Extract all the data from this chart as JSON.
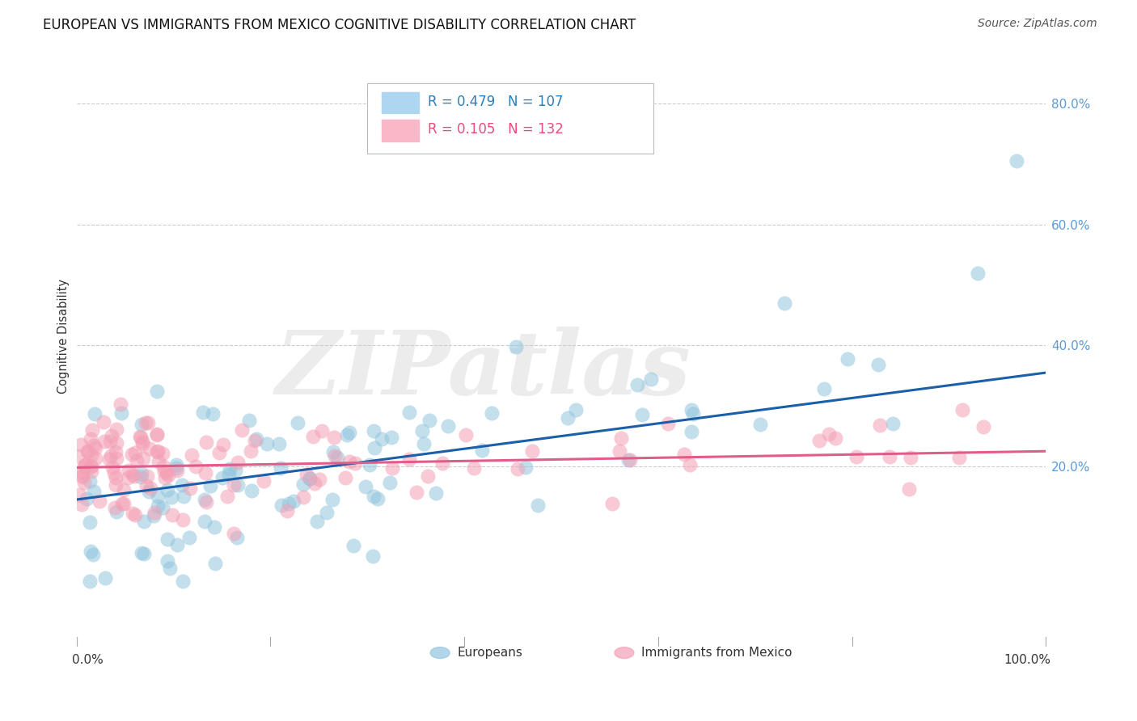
{
  "title": "EUROPEAN VS IMMIGRANTS FROM MEXICO COGNITIVE DISABILITY CORRELATION CHART",
  "source": "Source: ZipAtlas.com",
  "ylabel": "Cognitive Disability",
  "xlim": [
    0.0,
    1.0
  ],
  "ylim": [
    -0.05,
    0.88
  ],
  "ytick_positions": [
    0.2,
    0.4,
    0.6,
    0.8
  ],
  "ytick_labels": [
    "20.0%",
    "40.0%",
    "60.0%",
    "80.0%"
  ],
  "european_color": "#92c5de",
  "european_edge": "#92c5de",
  "mexico_color": "#f4a0b5",
  "mexico_edge": "#f4a0b5",
  "trendline_european_color": "#1a5fa8",
  "trendline_mexico_color": "#e05c8a",
  "background_color": "#ffffff",
  "grid_color": "#cccccc",
  "watermark_text": "ZIPatlas",
  "watermark_color": "#d0d0d0",
  "title_fontsize": 12,
  "source_fontsize": 10,
  "ytick_color": "#5b9bd5",
  "ytick_fontsize": 11,
  "legend_blue_color": "#aed6f1",
  "legend_pink_color": "#f9b8c8",
  "legend_text_blue": "#2980b9",
  "legend_text_pink": "#e74c7c",
  "legend_R_eu": "R = 0.479",
  "legend_N_eu": "N = 107",
  "legend_R_mx": "R = 0.105",
  "legend_N_mx": "N = 132",
  "eu_trendline_x0": 0.0,
  "eu_trendline_y0": 0.145,
  "eu_trendline_x1": 1.0,
  "eu_trendline_y1": 0.355,
  "mx_trendline_x0": 0.0,
  "mx_trendline_y0": 0.198,
  "mx_trendline_x1": 1.0,
  "mx_trendline_y1": 0.225
}
